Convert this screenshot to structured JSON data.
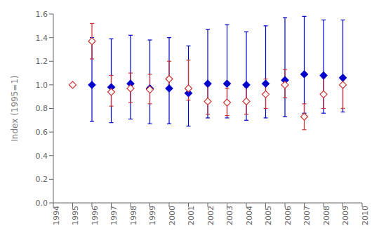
{
  "chart_data": {
    "type": "scatter",
    "ylabel": "Index (1995=1)",
    "xlim": [
      1994,
      2010
    ],
    "ylim": [
      0.0,
      1.6
    ],
    "yticks": [
      {
        "value": 0.0,
        "label": "0.0"
      },
      0.2,
      0.4,
      0.6,
      0.8,
      {
        "value": 1.0,
        "label": "1.0"
      },
      1.2,
      1.4,
      1.6
    ],
    "xticks": [
      1994,
      1995,
      1996,
      1997,
      1998,
      1999,
      2000,
      2001,
      2002,
      2003,
      2004,
      2005,
      2006,
      2007,
      2008,
      2009,
      2010
    ],
    "grid": false,
    "series": [
      {
        "color": "#0000cc",
        "marker": "diamond",
        "x": [
          1996,
          1997,
          1998,
          1999,
          2000,
          2001,
          2002,
          2003,
          2004,
          2005,
          2006,
          2007,
          2008,
          2009
        ],
        "values": [
          1.0,
          0.98,
          1.01,
          0.97,
          0.97,
          0.93,
          1.01,
          1.01,
          1.0,
          1.01,
          1.04,
          1.09,
          1.08,
          1.06
        ],
        "error_low": [
          0.69,
          0.68,
          0.71,
          0.67,
          0.67,
          0.65,
          0.72,
          0.72,
          0.7,
          0.72,
          0.73,
          0.76,
          0.76,
          0.77
        ],
        "error_high": [
          1.4,
          1.39,
          1.42,
          1.38,
          1.4,
          1.33,
          1.47,
          1.51,
          1.45,
          1.5,
          1.57,
          1.58,
          1.55,
          1.55
        ]
      },
      {
        "color": "#cc3333",
        "marker": "open_diamond",
        "x": [
          1995,
          1996,
          1997,
          1998,
          1999,
          2000,
          2001,
          2002,
          2003,
          2004,
          2005,
          2006,
          2007,
          2008,
          2009
        ],
        "values": [
          1.0,
          1.37,
          0.94,
          0.97,
          0.96,
          1.05,
          0.97,
          0.86,
          0.85,
          0.86,
          0.92,
          1.0,
          0.73,
          0.92,
          1.0
        ],
        "error_low": [
          1.0,
          1.22,
          0.82,
          0.85,
          0.84,
          0.96,
          0.87,
          0.75,
          0.74,
          0.75,
          0.8,
          0.89,
          0.62,
          0.8,
          0.8
        ],
        "error_high": [
          1.0,
          1.52,
          1.08,
          1.1,
          1.09,
          1.2,
          1.21,
          0.99,
          0.97,
          0.98,
          1.05,
          1.13,
          0.84,
          1.06,
          1.05
        ]
      }
    ]
  }
}
